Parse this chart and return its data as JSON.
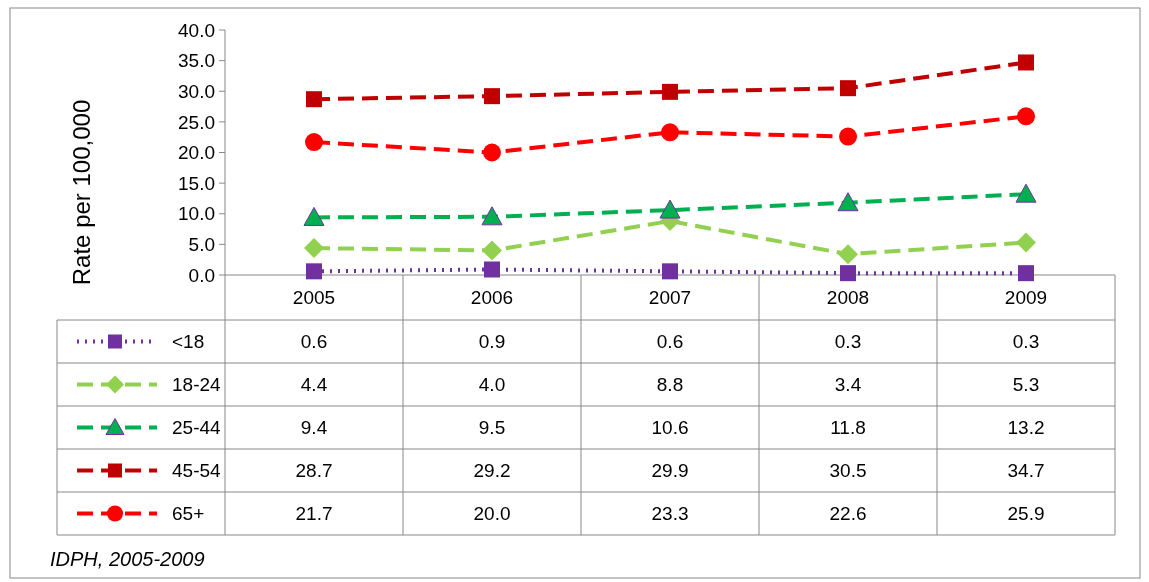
{
  "chart_data": {
    "type": "line",
    "ylabel": "Rate per 100,000",
    "categories": [
      "2005",
      "2006",
      "2007",
      "2008",
      "2009"
    ],
    "ylim": [
      0,
      40
    ],
    "yticks": [
      {
        "value": 0,
        "label": "0.0"
      },
      {
        "value": 5,
        "label": "5.0"
      },
      {
        "value": 10,
        "label": "10.0"
      },
      {
        "value": 15,
        "label": "15.0"
      },
      {
        "value": 20,
        "label": "20.0"
      },
      {
        "value": 25,
        "label": "25.0"
      },
      {
        "value": 30,
        "label": "30.0"
      },
      {
        "value": 35,
        "label": "35.0"
      },
      {
        "value": 40,
        "label": "40.0"
      }
    ],
    "legend": "bottom",
    "grid": false,
    "series": [
      {
        "name": "<18",
        "color": "#7030a0",
        "marker": "square",
        "line_style": "dotted",
        "values": [
          0.6,
          0.9,
          0.6,
          0.3,
          0.3
        ],
        "value_labels": [
          "0.6",
          "0.9",
          "0.6",
          "0.3",
          "0.3"
        ]
      },
      {
        "name": "18-24",
        "color": "#92d050",
        "marker": "diamond",
        "line_style": "dashed",
        "values": [
          4.4,
          4.0,
          8.8,
          3.4,
          5.3
        ],
        "value_labels": [
          "4.4",
          "4.0",
          "8.8",
          "3.4",
          "5.3"
        ]
      },
      {
        "name": "25-44",
        "color": "#00b050",
        "marker": "triangle",
        "line_style": "dashed",
        "values": [
          9.4,
          9.5,
          10.6,
          11.8,
          13.2
        ],
        "value_labels": [
          "9.4",
          "9.5",
          "10.6",
          "11.8",
          "13.2"
        ]
      },
      {
        "name": "45-54",
        "color": "#c00000",
        "marker": "square",
        "line_style": "dashed",
        "values": [
          28.7,
          29.2,
          29.9,
          30.5,
          34.7
        ],
        "value_labels": [
          "28.7",
          "29.2",
          "29.9",
          "30.5",
          "34.7"
        ]
      },
      {
        "name": "65+",
        "color": "#ff0000",
        "marker": "circle",
        "line_style": "dashed",
        "values": [
          21.7,
          20.0,
          23.3,
          22.6,
          25.9
        ],
        "value_labels": [
          "21.7",
          "20.0",
          "23.3",
          "22.6",
          "25.9"
        ]
      }
    ],
    "annotations": [
      "IDPH, 2005-2009"
    ]
  }
}
